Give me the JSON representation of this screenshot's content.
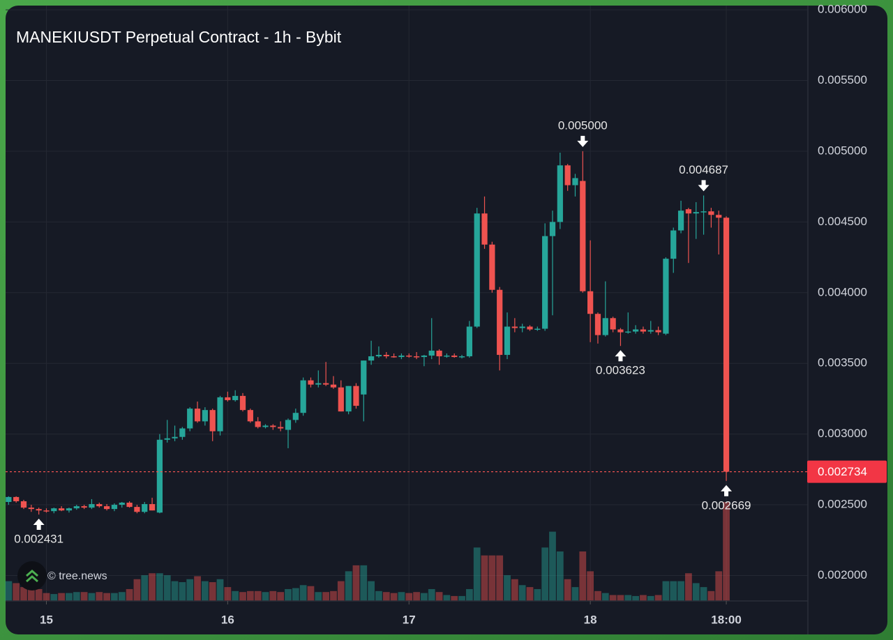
{
  "chart_data": {
    "type": "candlestick",
    "title": "MANEKIUSDT Perpetual Contract - 1h - Bybit",
    "watermark": "© tree.news",
    "up_color": "#26a69a",
    "down_color": "#ef5350",
    "grid": true,
    "ylim": [
      0.00182,
      0.00603
    ],
    "xlim": [
      -0.4,
      105.8
    ],
    "yticks": [
      {
        "value": 0.002,
        "label": "0.002000"
      },
      {
        "value": 0.0025,
        "label": "0.002500"
      },
      {
        "value": 0.003,
        "label": "0.003000"
      },
      {
        "value": 0.0035,
        "label": "0.003500"
      },
      {
        "value": 0.004,
        "label": "0.004000"
      },
      {
        "value": 0.0045,
        "label": "0.004500"
      },
      {
        "value": 0.005,
        "label": "0.005000"
      },
      {
        "value": 0.0055,
        "label": "0.005500"
      },
      {
        "value": 0.006,
        "label": "0.006000"
      }
    ],
    "xticks": [
      {
        "value": 5,
        "label": "15"
      },
      {
        "value": 29,
        "label": "16"
      },
      {
        "value": 53,
        "label": "17"
      },
      {
        "value": 77,
        "label": "18"
      },
      {
        "value": 95,
        "label": "18:00"
      }
    ],
    "last_price": {
      "value": 0.002734,
      "label": "0.002734"
    },
    "annotations": [
      {
        "value": 0.002431,
        "label": "0.002431"
      },
      {
        "value": 0.005,
        "label": "0.005000"
      },
      {
        "value": 0.003623,
        "label": "0.003623"
      },
      {
        "value": 0.004687,
        "label": "0.004687"
      },
      {
        "value": 0.002669,
        "label": "0.002669"
      }
    ],
    "open": [
      0.00252,
      0.002555,
      0.002525,
      0.00248,
      0.00247,
      0.00246,
      0.002455,
      0.002475,
      0.00246,
      0.002475,
      0.00249,
      0.00248,
      0.002505,
      0.00249,
      0.00247,
      0.0025,
      0.002515,
      0.002485,
      0.00245,
      0.002505,
      0.002445,
      0.00296,
      0.00297,
      0.00298,
      0.00304,
      0.00318,
      0.00309,
      0.00317,
      0.00302,
      0.00326,
      0.00324,
      0.00327,
      0.00317,
      0.00309,
      0.00305,
      0.00306,
      0.00305,
      0.00303,
      0.0031,
      0.00315,
      0.00338,
      0.00335,
      0.00336,
      0.00335,
      0.00333,
      0.00316,
      0.00334,
      0.00328,
      0.00352,
      0.00355,
      0.00356,
      0.00355,
      0.003545,
      0.003555,
      0.00355,
      0.003545,
      0.003555,
      0.00359,
      0.00355,
      0.003555,
      0.003545,
      0.00355,
      0.00376,
      0.00456,
      0.00434,
      0.00402,
      0.00356,
      0.00376,
      0.00375,
      0.00376,
      0.00374,
      0.003745,
      0.0044,
      0.0045,
      0.0049,
      0.00476,
      0.00479,
      0.00401,
      0.00385,
      0.0037,
      0.00382,
      0.00374,
      0.00372,
      0.003725,
      0.00374,
      0.003725,
      0.003735,
      0.00371,
      0.00424,
      0.00444,
      0.00459,
      0.00456,
      0.00457,
      0.004575,
      0.00455,
      0.00453
    ],
    "high": [
      0.00256,
      0.00256,
      0.002535,
      0.0025,
      0.00248,
      0.002475,
      0.00248,
      0.00249,
      0.00248,
      0.0025,
      0.0025,
      0.00254,
      0.002515,
      0.002505,
      0.00251,
      0.00252,
      0.002525,
      0.0025,
      0.00252,
      0.00255,
      0.003,
      0.0031,
      0.00306,
      0.00305,
      0.00319,
      0.00323,
      0.00319,
      0.00318,
      0.00327,
      0.0033,
      0.00331,
      0.00329,
      0.00318,
      0.00312,
      0.00307,
      0.00307,
      0.00309,
      0.00311,
      0.00318,
      0.0034,
      0.0034,
      0.00345,
      0.00351,
      0.00341,
      0.00338,
      0.00334,
      0.00336,
      0.00352,
      0.00366,
      0.00362,
      0.00358,
      0.00357,
      0.00357,
      0.00357,
      0.00358,
      0.00356,
      0.00382,
      0.0036,
      0.00357,
      0.00357,
      0.00356,
      0.0038,
      0.0046,
      0.00468,
      0.00436,
      0.00404,
      0.00386,
      0.00382,
      0.00378,
      0.00377,
      0.00376,
      0.00449,
      0.00458,
      0.00499,
      0.00491,
      0.00484,
      0.005,
      0.00437,
      0.00386,
      0.00408,
      0.00383,
      0.00375,
      0.00386,
      0.00377,
      0.00376,
      0.0038,
      0.00376,
      0.00425,
      0.00446,
      0.00465,
      0.0046,
      0.00464,
      0.004687,
      0.0046,
      0.00458,
      0.00454
    ],
    "low": [
      0.0025,
      0.002515,
      0.00247,
      0.00245,
      0.002431,
      0.002445,
      0.00244,
      0.002455,
      0.002445,
      0.002465,
      0.00247,
      0.00247,
      0.00248,
      0.00246,
      0.002455,
      0.00248,
      0.00248,
      0.00244,
      0.00244,
      0.00246,
      0.00244,
      0.00294,
      0.00295,
      0.00296,
      0.00302,
      0.00308,
      0.00306,
      0.00295,
      0.00299,
      0.00323,
      0.00323,
      0.00316,
      0.00308,
      0.00304,
      0.00304,
      0.00303,
      0.00302,
      0.0029,
      0.00308,
      0.00313,
      0.00333,
      0.00333,
      0.00334,
      0.00332,
      0.00316,
      0.00314,
      0.00318,
      0.00309,
      0.00349,
      0.00354,
      0.003535,
      0.00354,
      0.00353,
      0.00354,
      0.00353,
      0.00348,
      0.00353,
      0.00349,
      0.00354,
      0.00354,
      0.003535,
      0.00354,
      0.00375,
      0.00431,
      0.004,
      0.00345,
      0.00353,
      0.00372,
      0.00372,
      0.00373,
      0.00373,
      0.00373,
      0.00384,
      0.00445,
      0.00472,
      0.00468,
      0.004,
      0.00365,
      0.00364,
      0.00369,
      0.00372,
      0.003623,
      0.00371,
      0.00371,
      0.00371,
      0.00371,
      0.0037,
      0.0037,
      0.00414,
      0.00442,
      0.00421,
      0.00438,
      0.00441,
      0.00446,
      0.00427,
      0.002669
    ],
    "close": [
      0.002555,
      0.002525,
      0.00248,
      0.00247,
      0.00246,
      0.002455,
      0.002475,
      0.00246,
      0.002475,
      0.00249,
      0.00248,
      0.002505,
      0.00249,
      0.00247,
      0.0025,
      0.002515,
      0.002485,
      0.00245,
      0.002505,
      0.00246,
      0.00296,
      0.00297,
      0.00298,
      0.00304,
      0.00318,
      0.00309,
      0.00317,
      0.00302,
      0.00326,
      0.00324,
      0.00327,
      0.00317,
      0.00309,
      0.00305,
      0.00306,
      0.00305,
      0.00304,
      0.0031,
      0.00315,
      0.00338,
      0.00335,
      0.00336,
      0.00335,
      0.00333,
      0.00316,
      0.00334,
      0.0032,
      0.00352,
      0.00355,
      0.00356,
      0.00355,
      0.003545,
      0.003555,
      0.00355,
      0.003545,
      0.003555,
      0.00359,
      0.00355,
      0.003555,
      0.003545,
      0.00355,
      0.00376,
      0.00456,
      0.00434,
      0.00402,
      0.00356,
      0.00376,
      0.00375,
      0.00376,
      0.00374,
      0.003745,
      0.0044,
      0.0045,
      0.0049,
      0.00476,
      0.00481,
      0.00401,
      0.00385,
      0.0037,
      0.00382,
      0.00374,
      0.00372,
      0.003725,
      0.00374,
      0.003725,
      0.003735,
      0.00372,
      0.00424,
      0.00444,
      0.00458,
      0.00456,
      0.00457,
      0.004575,
      0.00455,
      0.00453,
      0.002734
    ],
    "volume": [
      20,
      18,
      14,
      15,
      12,
      8,
      7,
      8,
      8,
      9,
      9,
      8,
      9,
      8,
      8,
      9,
      12,
      22,
      26,
      28,
      28,
      26,
      20,
      19,
      22,
      25,
      20,
      19,
      22,
      14,
      10,
      9,
      10,
      10,
      9,
      10,
      9,
      12,
      13,
      16,
      15,
      9,
      9,
      10,
      20,
      30,
      36,
      36,
      20,
      10,
      9,
      8,
      9,
      8,
      9,
      8,
      12,
      9,
      6,
      5,
      5,
      12,
      54,
      46,
      46,
      46,
      26,
      22,
      16,
      14,
      12,
      54,
      70,
      50,
      22,
      14,
      50,
      30,
      10,
      8,
      6,
      6,
      6,
      5,
      6,
      5,
      6,
      20,
      20,
      20,
      28,
      18,
      14,
      10,
      30,
      100
    ]
  }
}
